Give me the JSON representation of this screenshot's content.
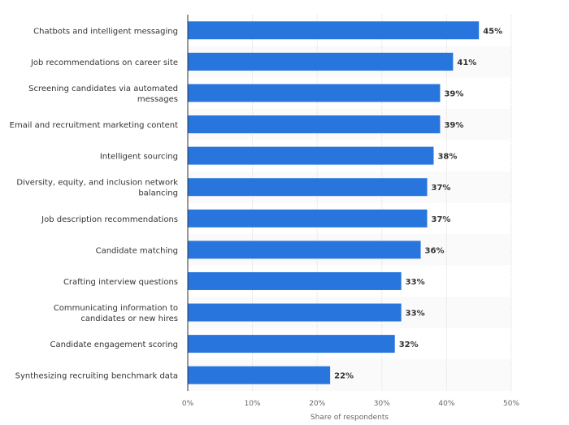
{
  "chart_data": {
    "type": "bar",
    "orientation": "horizontal",
    "categories": [
      "Chatbots and intelligent messaging",
      "Job recommendations on career site",
      "Screening candidates via automated messages",
      "Email and recruitment marketing content",
      "Intelligent sourcing",
      "Diversity, equity, and inclusion network balancing",
      "Job description recommendations",
      "Candidate matching",
      "Crafting interview questions",
      "Communicating information to candidates or new hires",
      "Candidate engagement scoring",
      "Synthesizing recruiting benchmark data"
    ],
    "category_lines": [
      [
        "Chatbots and intelligent messaging"
      ],
      [
        "Job recommendations on career site"
      ],
      [
        "Screening candidates via automated",
        "messages"
      ],
      [
        "Email and recruitment marketing content"
      ],
      [
        "Intelligent sourcing"
      ],
      [
        "Diversity, equity, and inclusion network",
        "balancing"
      ],
      [
        "Job description recommendations"
      ],
      [
        "Candidate matching"
      ],
      [
        "Crafting interview questions"
      ],
      [
        "Communicating information to",
        "candidates or new hires"
      ],
      [
        "Candidate engagement scoring"
      ],
      [
        "Synthesizing recruiting benchmark data"
      ]
    ],
    "values": [
      45,
      41,
      39,
      39,
      38,
      37,
      37,
      36,
      33,
      33,
      32,
      22
    ],
    "value_labels": [
      "45%",
      "41%",
      "39%",
      "39%",
      "38%",
      "37%",
      "37%",
      "36%",
      "33%",
      "33%",
      "32%",
      "22%"
    ],
    "xlabel": "Share of respondents",
    "xlim": [
      0,
      50
    ],
    "xticks": [
      "0%",
      "10%",
      "20%",
      "30%",
      "40%",
      "50%"
    ],
    "grid": true,
    "bar_color": "#2876dd"
  }
}
